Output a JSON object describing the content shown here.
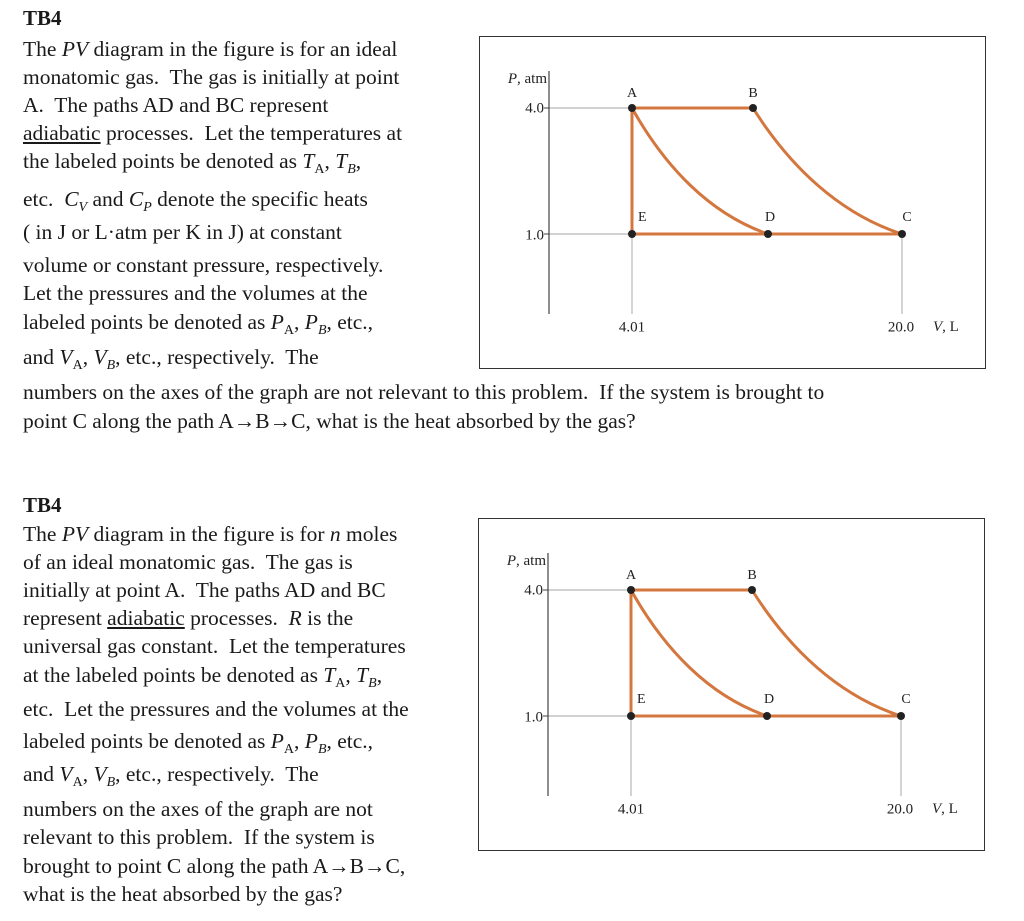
{
  "problems": [
    {
      "heading": "TB4",
      "lines": [
        [
          "The ",
          {
            "i": "PV"
          },
          " diagram in the figure is for an ideal"
        ],
        [
          "monatomic gas.  The gas is initially at point"
        ],
        [
          "A.  The paths AD and BC represent"
        ],
        [
          {
            "u": "adiabatic"
          },
          " processes.  Let the temperatures at"
        ],
        [
          "the labeled points be denoted as ",
          {
            "i": "T"
          },
          {
            "sub": "A"
          },
          ", ",
          {
            "i": "T"
          },
          {
            "isub": "B"
          },
          ","
        ],
        [
          "etc.  ",
          {
            "i": "C"
          },
          {
            "isub": "V"
          },
          " and ",
          {
            "i": "C"
          },
          {
            "isub": "P"
          },
          " denote the specific heats"
        ],
        [
          "( in J or L·atm per K in J) at constant"
        ],
        [
          "volume or constant pressure, respectively."
        ],
        [
          "Let the pressures and the volumes at the"
        ],
        [
          "labeled points be denoted as ",
          {
            "i": "P"
          },
          {
            "sub": "A"
          },
          ", ",
          {
            "i": "P"
          },
          {
            "isub": "B"
          },
          ", etc.,"
        ],
        [
          "and ",
          {
            "i": "V"
          },
          {
            "sub": "A"
          },
          ", ",
          {
            "i": "V"
          },
          {
            "isub": "B"
          },
          ", etc., respectively.  The"
        ],
        [
          "numbers on the axes of the graph are not relevant to this problem.  If the system is brought to"
        ],
        [
          "point C along the path A→B→C, what is the heat absorbed by the gas?"
        ]
      ],
      "figure": {
        "p_label": [
          {
            "i": "P"
          },
          ", atm"
        ],
        "v_label": [
          {
            "i": "V"
          },
          ", L"
        ],
        "p_ticks": [
          "4.0",
          "1.0"
        ],
        "v_ticks": [
          "4.01",
          "20.0"
        ],
        "points": [
          "A",
          "B",
          "C",
          "D",
          "E"
        ]
      }
    },
    {
      "heading": "TB4",
      "lines": [
        [
          "The ",
          {
            "i": "PV"
          },
          " diagram in the figure is for ",
          {
            "i": "n"
          },
          " moles"
        ],
        [
          "of an ideal monatomic gas.  The gas is"
        ],
        [
          "initially at point A.  The paths AD and BC"
        ],
        [
          "represent ",
          {
            "u": "adiabatic"
          },
          " processes.  ",
          {
            "i": "R"
          },
          " is the"
        ],
        [
          "universal gas constant.  Let the temperatures"
        ],
        [
          "at the labeled points be denoted as ",
          {
            "i": "T"
          },
          {
            "sub": "A"
          },
          ", ",
          {
            "i": "T"
          },
          {
            "isub": "B"
          },
          ","
        ],
        [
          "etc.  Let the pressures and the volumes at the"
        ],
        [
          "labeled points be denoted as ",
          {
            "i": "P"
          },
          {
            "sub": "A"
          },
          ", ",
          {
            "i": "P"
          },
          {
            "isub": "B"
          },
          ", etc.,"
        ],
        [
          "and ",
          {
            "i": "V"
          },
          {
            "sub": "A"
          },
          ", ",
          {
            "i": "V"
          },
          {
            "isub": "B"
          },
          ", etc., respectively.  The"
        ],
        [
          "numbers on the axes of the graph are not"
        ],
        [
          "relevant to this problem.  If the system is"
        ],
        [
          "brought to point C along the path A→B→C,"
        ],
        [
          "what is the heat absorbed by the gas?"
        ]
      ],
      "figure": {
        "p_label": [
          {
            "i": "P"
          },
          ", atm"
        ],
        "v_label": [
          {
            "i": "V"
          },
          ", L"
        ],
        "p_ticks": [
          "4.0",
          "1.0"
        ],
        "v_ticks": [
          "4.01",
          "20.0"
        ],
        "points": [
          "A",
          "B",
          "C",
          "D",
          "E"
        ]
      }
    }
  ]
}
